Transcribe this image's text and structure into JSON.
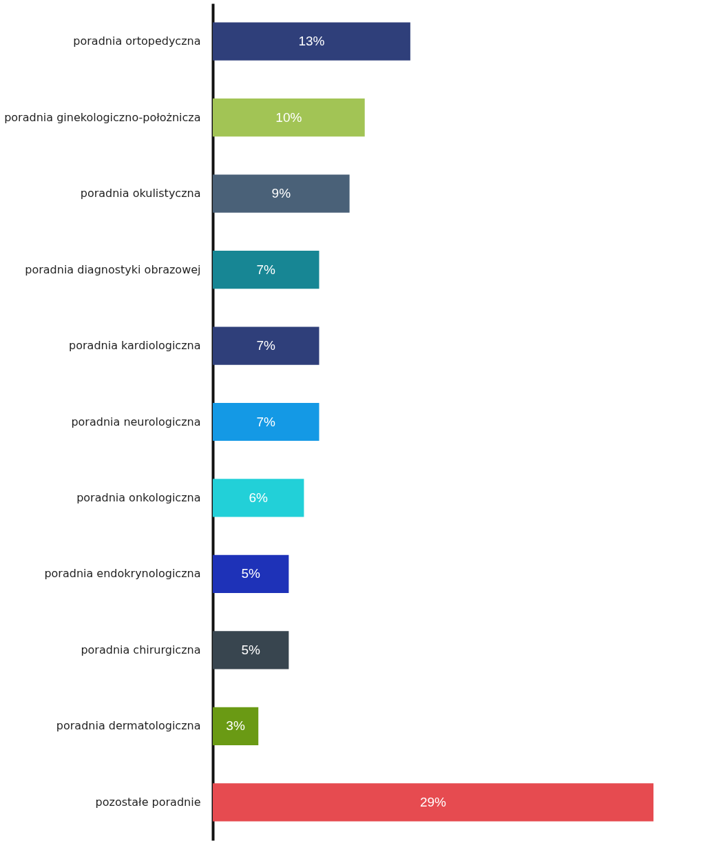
{
  "chart_data": {
    "type": "bar",
    "orientation": "horizontal",
    "categories": [
      "poradnia ortopedyczna",
      "poradnia ginekologiczno-położnicza",
      "poradnia okulistyczna",
      "poradnia diagnostyki obrazowej",
      "poradnia kardiologiczna",
      "poradnia neurologiczna",
      "poradnia onkologiczna",
      "poradnia endokrynologiczna",
      "poradnia chirurgiczna",
      "poradnia dermatologiczna",
      "pozostałe poradnie"
    ],
    "values": [
      13,
      10,
      9,
      7,
      7,
      7,
      6,
      5,
      5,
      3,
      29
    ],
    "value_labels": [
      "13%",
      "10%",
      "9%",
      "7%",
      "7%",
      "7%",
      "6%",
      "5%",
      "5%",
      "3%",
      "29%"
    ],
    "colors": [
      "#2f3f7a",
      "#a2c455",
      "#4a6178",
      "#178694",
      "#2f3f7a",
      "#1499e5",
      "#22d0d8",
      "#1e32b8",
      "#38454f",
      "#6a9a14",
      "#e64b50"
    ],
    "grid": false
  }
}
